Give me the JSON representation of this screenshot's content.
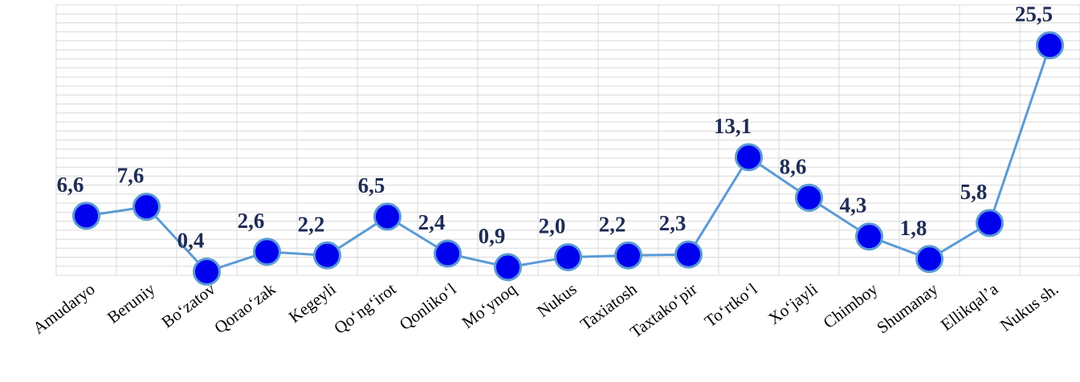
{
  "chart_data": {
    "type": "line",
    "title": "",
    "xlabel": "",
    "ylabel": "",
    "ylim": [
      0,
      30
    ],
    "grid": true,
    "legend": "none",
    "categories": [
      "Amudaryo",
      "Beruniy",
      "Bo‘zatov",
      "Qorao‘zak",
      "Kegeyli",
      "Qo‘ng‘irot",
      "Qonliko‘l",
      "Mo‘ynoq",
      "Nukus",
      "Taxiatosh",
      "Taxtako‘pir",
      "To‘rtko‘l",
      "Xo‘jayli",
      "Chimboy",
      "Shumanay",
      "Ellikqal’a",
      "Nukus sh."
    ],
    "series": [
      {
        "values": [
          6.6,
          7.6,
          0.4,
          2.6,
          2.2,
          6.5,
          2.4,
          0.9,
          2.0,
          2.2,
          2.3,
          13.1,
          8.6,
          4.3,
          1.8,
          5.8,
          25.5
        ],
        "labels": [
          "6,6",
          "7,6",
          "0,4",
          "2,6",
          "2,2",
          "6,5",
          "2,4",
          "0,9",
          "2,0",
          "2,2",
          "2,3",
          "13,1",
          "8,6",
          "4,3",
          "1,8",
          "5,8",
          "25,5"
        ]
      }
    ],
    "colors": {
      "line": "#5b9bd5",
      "marker": "#0000ee",
      "label": "#1f2c55",
      "grid": "#d9d9d9"
    }
  }
}
